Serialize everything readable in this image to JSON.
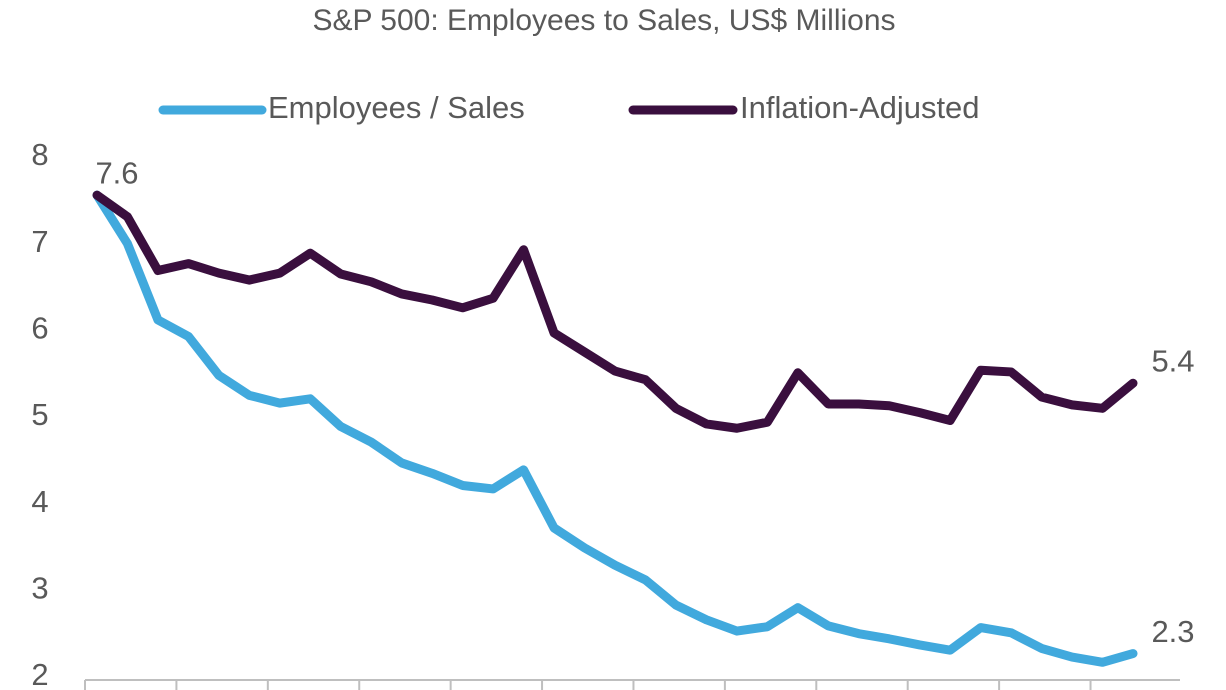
{
  "chart_data": {
    "type": "line",
    "title": "S&P 500: Employees to Sales, US$ Millions",
    "categories": [
      null,
      null,
      null,
      null,
      null,
      null,
      null,
      null,
      null,
      null,
      null,
      null,
      null,
      null,
      null,
      null,
      null,
      null,
      null,
      null,
      null,
      null,
      null,
      null,
      null,
      null,
      null,
      null,
      null,
      null,
      null,
      null,
      null,
      null,
      null
    ],
    "series": [
      {
        "name": "Employees / Sales",
        "color": "#41a9dd",
        "values": [
          7.56,
          7.0,
          6.12,
          5.93,
          5.48,
          5.25,
          5.16,
          5.21,
          4.89,
          4.71,
          4.47,
          4.35,
          4.21,
          4.17,
          4.39,
          3.72,
          3.49,
          3.29,
          3.12,
          2.83,
          2.66,
          2.53,
          2.58,
          2.8,
          2.59,
          2.5,
          2.44,
          2.37,
          2.31,
          2.57,
          2.51,
          2.33,
          2.23,
          2.17,
          2.27
        ],
        "value_labels": [
          null,
          null,
          null,
          null,
          null,
          null,
          null,
          null,
          null,
          null,
          null,
          null,
          null,
          null,
          null,
          null,
          null,
          null,
          null,
          null,
          null,
          null,
          null,
          null,
          null,
          null,
          null,
          null,
          null,
          null,
          null,
          null,
          null,
          null,
          "2.3"
        ]
      },
      {
        "name": "Inflation-Adjusted",
        "color": "#3a0f3e",
        "values": [
          7.56,
          7.31,
          6.69,
          6.77,
          6.66,
          6.58,
          6.66,
          6.89,
          6.65,
          6.56,
          6.42,
          6.35,
          6.26,
          6.37,
          6.93,
          5.97,
          5.75,
          5.53,
          5.43,
          5.1,
          4.92,
          4.87,
          4.94,
          5.51,
          5.15,
          5.15,
          5.13,
          5.05,
          4.96,
          5.54,
          5.52,
          5.23,
          5.14,
          5.1,
          5.39
        ],
        "value_labels": [
          "7.6",
          null,
          null,
          null,
          null,
          null,
          null,
          null,
          null,
          null,
          null,
          null,
          null,
          null,
          null,
          null,
          null,
          null,
          null,
          null,
          null,
          null,
          null,
          null,
          null,
          null,
          null,
          null,
          null,
          null,
          null,
          null,
          null,
          null,
          "5.4"
        ]
      }
    ],
    "ylim": [
      2,
      8
    ],
    "yticks": [
      2,
      3,
      4,
      5,
      6,
      7,
      8
    ],
    "legend": "top"
  }
}
